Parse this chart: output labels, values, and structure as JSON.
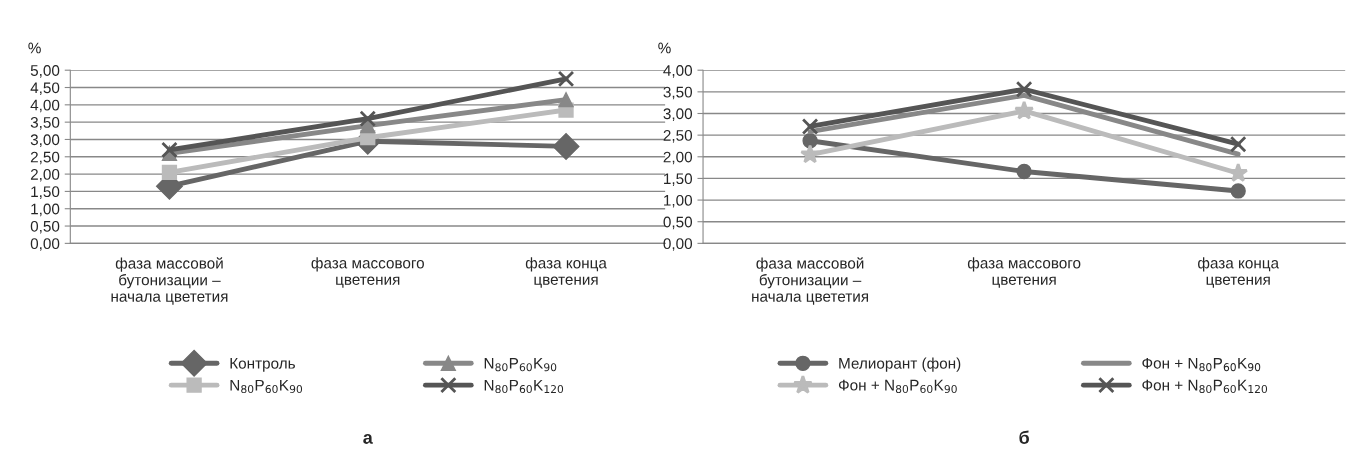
{
  "chart_data": [
    {
      "type": "line",
      "ylabel": "%",
      "categories": [
        "фаза массовой\nбутонизации –\nначала цвететия",
        "фаза массового\nцветения",
        "фаза конца\nцветения"
      ],
      "series": [
        {
          "name": "Контроль",
          "color": "#666666",
          "marker": "diamond",
          "values": [
            1.65,
            2.95,
            2.8
          ]
        },
        {
          "name": "N$_{80}$P$_{60}$K$_{90}$",
          "color": "#bbbbbb",
          "marker": "square",
          "values": [
            2.05,
            3.05,
            3.85
          ]
        },
        {
          "name": "N$_{80}$P$_{60}$K$_{90}$",
          "color": "#888888",
          "marker": "triangle",
          "values": [
            2.6,
            3.4,
            4.15
          ]
        },
        {
          "name": "N$_{80}$P$_{60}$K$_{120}$",
          "color": "#555555",
          "marker": "cross",
          "values": [
            2.7,
            3.6,
            4.75
          ]
        }
      ],
      "ylim": [
        0,
        5
      ],
      "yticks": [
        {
          "value": 0,
          "label": "0,00"
        },
        {
          "value": 0.5,
          "label": "0,50"
        },
        {
          "value": 1,
          "label": "1,00"
        },
        {
          "value": 1.5,
          "label": "1,50"
        },
        {
          "value": 2,
          "label": "2,00"
        },
        {
          "value": 2.5,
          "label": "2,50"
        },
        {
          "value": 3,
          "label": "3,00"
        },
        {
          "value": 3.5,
          "label": "3,50"
        },
        {
          "value": 4,
          "label": "4,00"
        },
        {
          "value": 4.5,
          "label": "4,50"
        },
        {
          "value": 5,
          "label": "5,00"
        }
      ],
      "grid": "y",
      "legend": "bottom",
      "annotations": [
        "а"
      ]
    },
    {
      "type": "line",
      "ylabel": "%",
      "categories": [
        "фаза массовой\nбутонизации –\nначала цвететия",
        "фаза массового\nцветения",
        "фаза конца\nцветения"
      ],
      "series": [
        {
          "name": "Мелиорант (фон)",
          "color": "#666666",
          "marker": "circle",
          "values": [
            2.37,
            1.66,
            1.21
          ]
        },
        {
          "name": "Фон + N$_{80}$P$_{60}$K$_{90}$",
          "color": "#bbbbbb",
          "marker": "star",
          "values": [
            2.05,
            3.06,
            1.62
          ]
        },
        {
          "name": "Фон + N$_{80}$P$_{60}$K$_{90}$",
          "color": "#888888",
          "marker": "none",
          "values": [
            2.58,
            3.42,
            2.06
          ]
        },
        {
          "name": "Фон + N$_{80}$P$_{60}$K$_{120}$",
          "color": "#555555",
          "marker": "cross",
          "values": [
            2.7,
            3.56,
            2.29
          ]
        }
      ],
      "ylim": [
        0,
        4
      ],
      "yticks": [
        {
          "value": 0,
          "label": "0,00"
        },
        {
          "value": 0.5,
          "label": "0,50"
        },
        {
          "value": 1,
          "label": "1,00"
        },
        {
          "value": 1.5,
          "label": "1,50"
        },
        {
          "value": 2,
          "label": "2,00"
        },
        {
          "value": 2.5,
          "label": "2,50"
        },
        {
          "value": 3,
          "label": "3,00"
        },
        {
          "value": 3.5,
          "label": "3,50"
        },
        {
          "value": 4,
          "label": "4,00"
        }
      ],
      "grid": "y",
      "legend": "bottom",
      "annotations": [
        "б"
      ]
    }
  ]
}
